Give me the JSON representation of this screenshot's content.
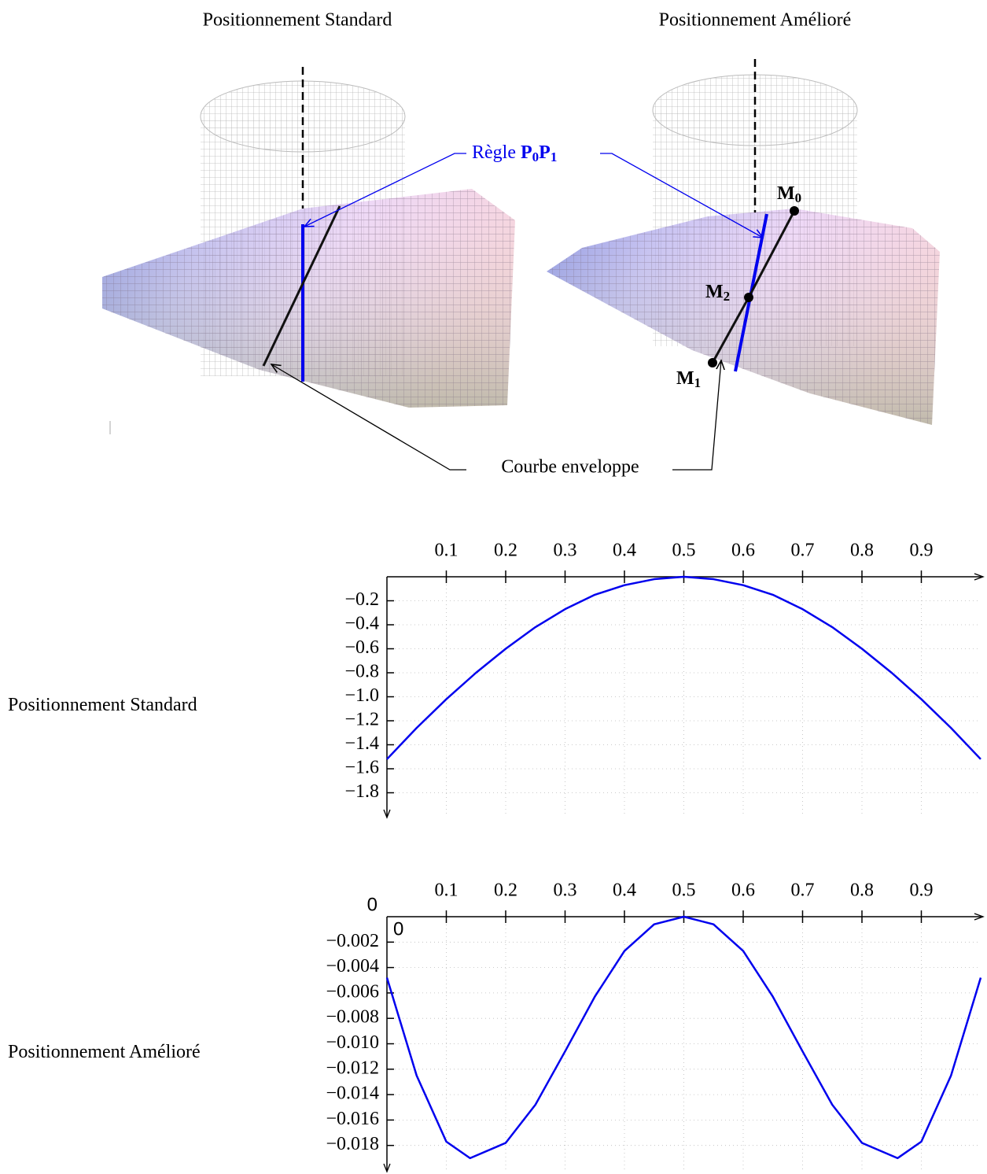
{
  "illustrations": {
    "left_title": "Positionnement Standard",
    "right_title": "Positionnement Amélioré",
    "ruling_prefix": "Règle",
    "ruling_points": [
      {
        "base": "P",
        "sub": "0"
      },
      {
        "base": "P",
        "sub": "1"
      }
    ],
    "envelope_label": "Courbe enveloppe",
    "points": [
      {
        "base": "M",
        "sub": "0"
      },
      {
        "base": "M",
        "sub": "1"
      },
      {
        "base": "M",
        "sub": "2"
      }
    ]
  },
  "chart_data": [
    {
      "type": "line",
      "ylabel": "Positionnement Standard",
      "x": [
        0,
        0.05,
        0.1,
        0.15,
        0.2,
        0.25,
        0.3,
        0.35,
        0.4,
        0.45,
        0.5,
        0.55,
        0.6,
        0.65,
        0.7,
        0.75,
        0.8,
        0.85,
        0.9,
        0.95,
        1
      ],
      "values": [
        -1.52,
        -1.26,
        -1.02,
        -0.8,
        -0.6,
        -0.42,
        -0.27,
        -0.15,
        -0.07,
        -0.02,
        0,
        -0.02,
        -0.07,
        -0.15,
        -0.27,
        -0.42,
        -0.6,
        -0.8,
        -1.02,
        -1.26,
        -1.52
      ],
      "color": "#0000ee",
      "xlim": [
        0,
        1
      ],
      "ylim": [
        -2,
        0
      ],
      "xticks": [
        0.1,
        0.2,
        0.3,
        0.4,
        0.5,
        0.6,
        0.7,
        0.8,
        0.9
      ],
      "yticks": [
        {
          "value": -0.2,
          "label": "−0.2"
        },
        {
          "value": -0.4,
          "label": "−0.4"
        },
        {
          "value": -0.6,
          "label": "−0.6"
        },
        {
          "value": -0.8,
          "label": "−0.8"
        },
        {
          "value": -1.0,
          "label": "−1.0"
        },
        {
          "value": -1.2,
          "label": "−1.2"
        },
        {
          "value": -1.4,
          "label": "−1.4"
        },
        {
          "value": -1.6,
          "label": "−1.6"
        },
        {
          "value": -1.8,
          "label": "−1.8"
        }
      ],
      "grid": true
    },
    {
      "type": "line",
      "ylabel": "Positionnement Amélioré",
      "annotations": [
        "0",
        "0"
      ],
      "x": [
        0,
        0.05,
        0.1,
        0.14,
        0.2,
        0.25,
        0.3,
        0.35,
        0.4,
        0.45,
        0.5,
        0.55,
        0.6,
        0.65,
        0.7,
        0.75,
        0.8,
        0.86,
        0.9,
        0.95,
        1
      ],
      "values": [
        -0.0048,
        -0.0125,
        -0.0177,
        -0.019,
        -0.0178,
        -0.0148,
        -0.0106,
        -0.0063,
        -0.0027,
        -0.0006,
        0,
        -0.0006,
        -0.0027,
        -0.0063,
        -0.0106,
        -0.0148,
        -0.0178,
        -0.019,
        -0.0177,
        -0.0125,
        -0.0048
      ],
      "color": "#0000ee",
      "xlim": [
        0,
        1
      ],
      "ylim": [
        -0.02,
        0
      ],
      "xticks": [
        0.1,
        0.2,
        0.3,
        0.4,
        0.5,
        0.6,
        0.7,
        0.8,
        0.9
      ],
      "yticks": [
        {
          "value": -0.002,
          "label": "−0.002"
        },
        {
          "value": -0.004,
          "label": "−0.004"
        },
        {
          "value": -0.006,
          "label": "−0.006"
        },
        {
          "value": -0.008,
          "label": "−0.008"
        },
        {
          "value": -0.01,
          "label": "−0.010"
        },
        {
          "value": -0.012,
          "label": "−0.012"
        },
        {
          "value": -0.014,
          "label": "−0.014"
        },
        {
          "value": -0.016,
          "label": "−0.016"
        },
        {
          "value": -0.018,
          "label": "−0.018"
        }
      ],
      "grid": true
    }
  ]
}
